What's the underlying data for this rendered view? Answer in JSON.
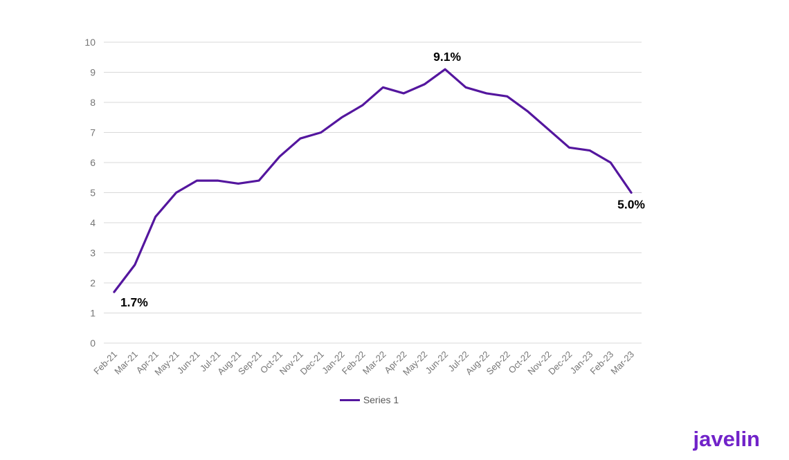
{
  "chart_data": {
    "type": "line",
    "title": "",
    "xlabel": "",
    "ylabel": "",
    "categories": [
      "Feb-21",
      "Mar-21",
      "Apr-21",
      "May-21",
      "Jun-21",
      "Jul-21",
      "Aug-21",
      "Sep-21",
      "Oct-21",
      "Nov-21",
      "Dec-21",
      "Jan-22",
      "Feb-22",
      "Mar-22",
      "Apr-22",
      "May-22",
      "Jun-22",
      "Jul-22",
      "Aug-22",
      "Sep-22",
      "Oct-22",
      "Nov-22",
      "Dec-22",
      "Jan-23",
      "Feb-23",
      "Mar-23"
    ],
    "series": [
      {
        "name": "Series 1",
        "color": "#54169e",
        "values": [
          1.7,
          2.6,
          4.2,
          5.0,
          5.4,
          5.4,
          5.3,
          5.4,
          6.2,
          6.8,
          7.0,
          7.5,
          7.9,
          8.5,
          8.3,
          8.6,
          9.1,
          8.5,
          8.3,
          8.2,
          7.7,
          7.1,
          6.5,
          6.4,
          6.0,
          5.0
        ]
      }
    ],
    "ylim": [
      0,
      10
    ],
    "yticks": [
      0,
      1,
      2,
      3,
      4,
      5,
      6,
      7,
      8,
      9,
      10
    ],
    "grid": true,
    "legend_position": "bottom",
    "point_labels": [
      {
        "index": 0,
        "text": "1.7%",
        "position": "below-right"
      },
      {
        "index": 16,
        "text": "9.1%",
        "position": "above"
      },
      {
        "index": 25,
        "text": "5.0%",
        "position": "below"
      }
    ],
    "colors": {
      "gridline": "#d9d9d9",
      "axis_tick_label": "#757575",
      "data_label": "#000000",
      "legend_text": "#595959"
    }
  },
  "legend": {
    "label": "Series 1"
  },
  "branding": {
    "logo_text": "javelin",
    "color": "#7123c9"
  }
}
